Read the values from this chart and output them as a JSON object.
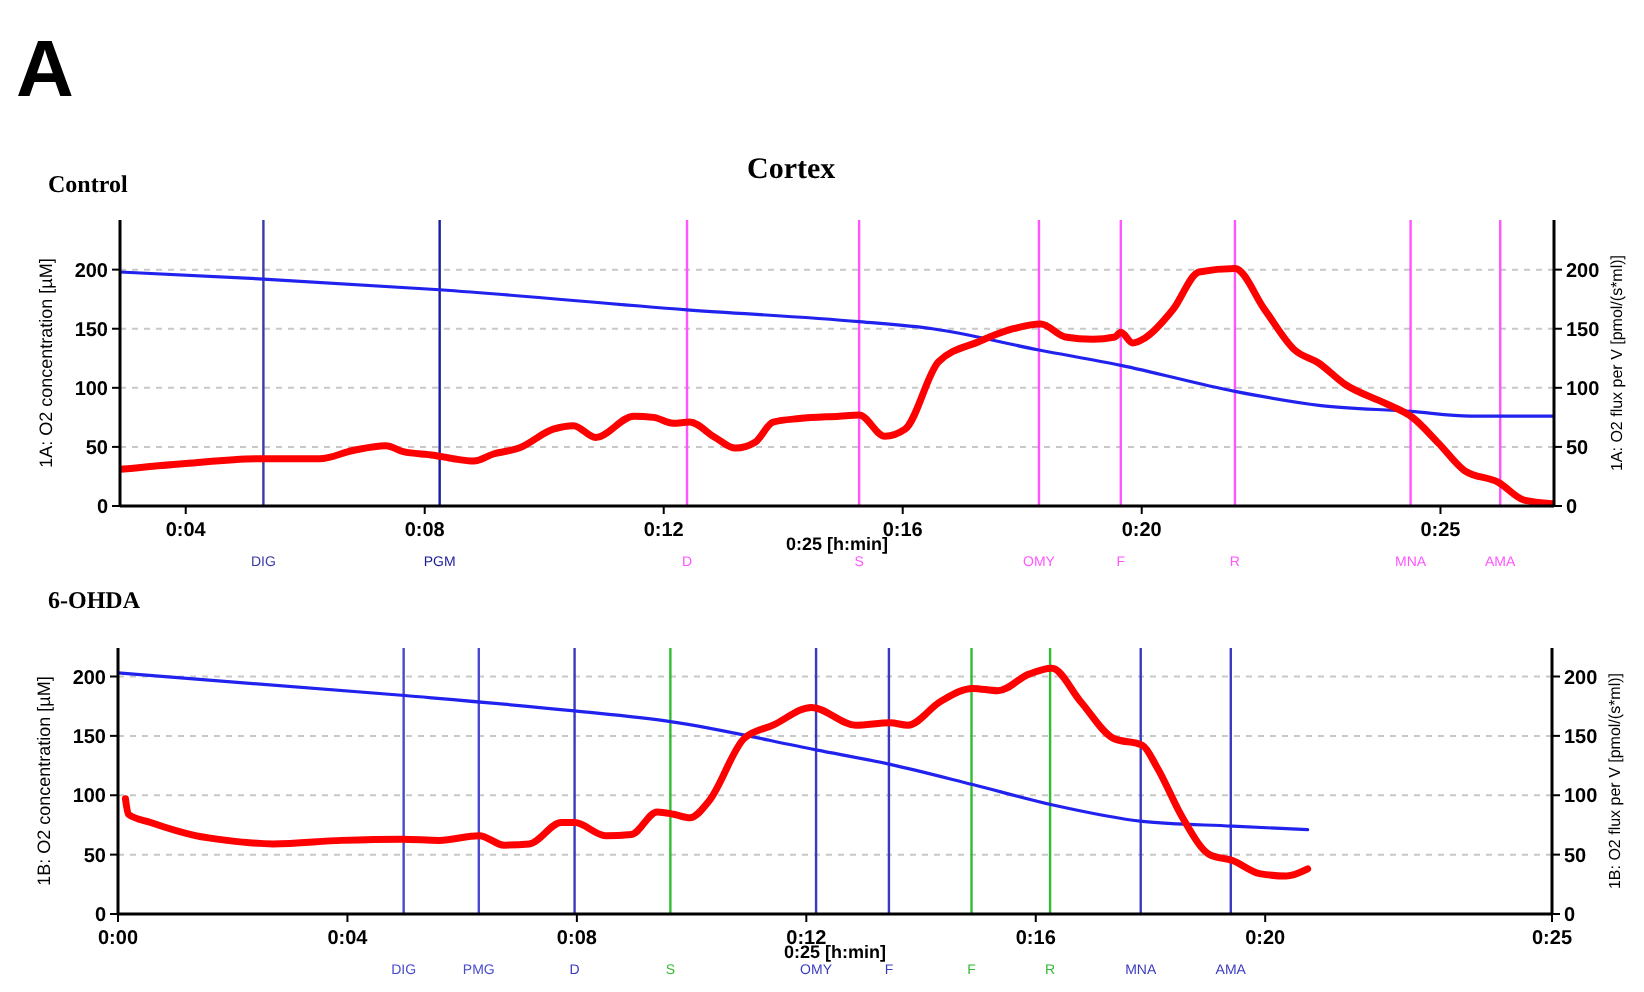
{
  "chart_data": [
    {
      "type": "line",
      "title": "Cortex",
      "subtitle": "Control",
      "annotations": [
        "A"
      ],
      "xlabel": "0:25 [h:min]",
      "ylabel": "1A: O2 concentration [µM]",
      "y2label": "1A: O2 flux per V [pmol/(s*ml)]",
      "xlim": [
        2.9,
        26.9
      ],
      "xticks": [
        {
          "value": 4,
          "label": "0:04"
        },
        {
          "value": 8,
          "label": "0:08"
        },
        {
          "value": 12,
          "label": "0:12"
        },
        {
          "value": 16,
          "label": "0:16"
        },
        {
          "value": 20,
          "label": "0:20"
        },
        {
          "value": 25,
          "label": "0:25"
        }
      ],
      "ylim": [
        0,
        242
      ],
      "yticks": [
        0,
        50,
        100,
        150,
        200
      ],
      "y2lim": [
        0,
        242
      ],
      "y2ticks": [
        0,
        50,
        100,
        150,
        200
      ],
      "grid": "y",
      "marker": "none",
      "line_style": "solid",
      "series": [
        {
          "color": "#2222ee",
          "axis": "y",
          "x": [
            2.9,
            5.3,
            8.25,
            12.39,
            15.27,
            16.5,
            18.28,
            19.65,
            21.56,
            23,
            24.5,
            25.5,
            26.9
          ],
          "values": [
            198,
            192,
            183,
            166,
            156,
            150,
            132,
            119,
            97,
            85,
            80,
            76,
            76
          ]
        },
        {
          "color": "#ff0000",
          "axis": "y2",
          "x": [
            2.9,
            4.0,
            5.24,
            6.24,
            6.8,
            7.35,
            7.64,
            8.15,
            8.48,
            8.82,
            9.15,
            9.58,
            10.15,
            10.49,
            10.86,
            11.5,
            11.83,
            12.16,
            12.43,
            12.86,
            13.2,
            13.53,
            13.83,
            14.27,
            14.94,
            15.27,
            15.7,
            16.04,
            16.6,
            17.27,
            17.85,
            18.31,
            18.72,
            19.18,
            19.55,
            19.65,
            19.85,
            20.05,
            20.52,
            20.96,
            21.56,
            22.06,
            22.56,
            22.96,
            23.4,
            24.07,
            24.53,
            24.97,
            25.4,
            25.97,
            26.4,
            26.87
          ],
          "values": [
            31,
            36,
            40,
            40,
            47,
            51,
            46,
            43,
            40,
            38,
            44,
            49,
            65,
            68,
            58,
            76,
            75,
            70,
            71,
            58,
            49,
            54,
            71,
            74,
            76,
            77,
            59,
            65,
            122,
            139,
            150,
            154,
            143,
            141,
            143,
            147,
            138,
            142,
            166,
            198,
            201,
            166,
            132,
            121,
            103,
            87,
            75,
            53,
            30,
            20,
            5,
            2
          ]
        }
      ],
      "ref_lines": [
        {
          "axis": "x",
          "value": 5.3,
          "label": "DIG",
          "color": "#3a3aa8"
        },
        {
          "axis": "x",
          "value": 8.25,
          "label": "PGM",
          "color": "#1a1a9a"
        },
        {
          "axis": "x",
          "value": 12.39,
          "label": "D",
          "color": "#ff55ff"
        },
        {
          "axis": "x",
          "value": 15.27,
          "label": "S",
          "color": "#ff55ff"
        },
        {
          "axis": "x",
          "value": 18.28,
          "label": "OMY",
          "color": "#ff55ff"
        },
        {
          "axis": "x",
          "value": 19.65,
          "label": "F",
          "color": "#ff55ff"
        },
        {
          "axis": "x",
          "value": 21.56,
          "label": "R",
          "color": "#ff55ff"
        },
        {
          "axis": "x",
          "value": 24.5,
          "label": "MNA",
          "color": "#ff55ff"
        },
        {
          "axis": "x",
          "value": 26.0,
          "label": "AMA",
          "color": "#ff55ff"
        }
      ]
    },
    {
      "type": "line",
      "title": "6-OHDA",
      "xlabel": "0:25 [h:min]",
      "ylabel": "1B: O2 concentration [µM]",
      "y2label": "1B: O2 flux per V [pmol/(s*ml)]",
      "xlim": [
        0,
        25
      ],
      "xticks": [
        {
          "value": 0,
          "label": "0:00"
        },
        {
          "value": 4,
          "label": "0:04"
        },
        {
          "value": 8,
          "label": "0:08"
        },
        {
          "value": 12,
          "label": "0:12"
        },
        {
          "value": 16,
          "label": "0:16"
        },
        {
          "value": 20,
          "label": "0:20"
        },
        {
          "value": 25,
          "label": "0:25"
        }
      ],
      "ylim": [
        0,
        224
      ],
      "yticks": [
        0,
        50,
        100,
        150,
        200
      ],
      "y2lim": [
        0,
        224
      ],
      "y2ticks": [
        0,
        50,
        100,
        150,
        200
      ],
      "grid": "y",
      "marker": "none",
      "line_style": "solid",
      "series": [
        {
          "color": "#2222ee",
          "axis": "y",
          "x": [
            0,
            5.0,
            7.96,
            9.63,
            12.19,
            13.46,
            14.9,
            16.28,
            17.86,
            19.43,
            20.74
          ],
          "values": [
            203,
            184,
            171,
            162,
            138,
            126,
            109,
            92,
            78,
            74,
            71
          ]
        },
        {
          "color": "#ff0000",
          "axis": "y2",
          "x": [
            0.13,
            0.18,
            0.57,
            1.35,
            1.9,
            2.7,
            3.9,
            4.96,
            5.6,
            6.3,
            6.73,
            7.17,
            7.73,
            7.96,
            8.5,
            8.95,
            9.4,
            9.69,
            9.97,
            10.3,
            10.92,
            11.42,
            12.09,
            12.86,
            13.46,
            13.77,
            14.34,
            14.9,
            15.34,
            15.88,
            16.28,
            16.78,
            17.35,
            17.86,
            18.12,
            18.56,
            19.03,
            19.43,
            19.9,
            20.37,
            20.74
          ],
          "values": [
            97,
            84,
            77,
            66,
            62,
            59,
            62,
            63,
            62,
            66,
            58,
            59,
            77,
            77,
            66,
            67,
            86,
            84,
            81,
            95,
            148,
            159,
            174,
            159,
            161,
            159,
            179,
            190,
            188,
            202,
            207,
            179,
            148,
            142,
            123,
            81,
            50,
            45,
            34,
            32,
            38
          ]
        }
      ],
      "ref_lines": [
        {
          "axis": "x",
          "value": 4.98,
          "label": "DIG",
          "color": "#4a4ad0"
        },
        {
          "axis": "x",
          "value": 6.29,
          "label": "PMG",
          "color": "#4a4ad0"
        },
        {
          "axis": "x",
          "value": 7.96,
          "label": "D",
          "color": "#3a3ac0"
        },
        {
          "axis": "x",
          "value": 9.63,
          "label": "S",
          "color": "#33bb33"
        },
        {
          "axis": "x",
          "value": 12.17,
          "label": "OMY",
          "color": "#3a3ac0"
        },
        {
          "axis": "x",
          "value": 13.44,
          "label": "F",
          "color": "#3a3ac0"
        },
        {
          "axis": "x",
          "value": 14.88,
          "label": "F",
          "color": "#33bb33"
        },
        {
          "axis": "x",
          "value": 16.25,
          "label": "R",
          "color": "#33bb33"
        },
        {
          "axis": "x",
          "value": 17.83,
          "label": "MNA",
          "color": "#3a3ac0"
        },
        {
          "axis": "x",
          "value": 19.4,
          "label": "AMA",
          "color": "#3a3ac0"
        }
      ]
    }
  ]
}
